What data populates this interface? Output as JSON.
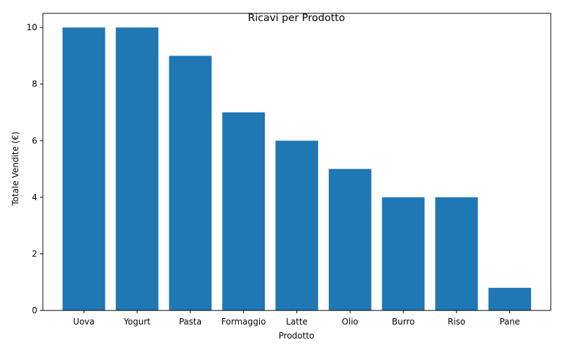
{
  "chart_data": {
    "type": "bar",
    "title": "Ricavi per Prodotto",
    "xlabel": "Prodotto",
    "ylabel": "Totale Vendite (€)",
    "categories": [
      "Uova",
      "Yogurt",
      "Pasta",
      "Formaggio",
      "Latte",
      "Olio",
      "Burro",
      "Riso",
      "Pane"
    ],
    "values": [
      10,
      10,
      9,
      7,
      6,
      5,
      4,
      4,
      0.8
    ],
    "ylim": [
      0,
      10.5
    ],
    "yticks": [
      0,
      2,
      4,
      6,
      8,
      10
    ],
    "grid": false,
    "legend": "none",
    "bar_color": "#1f77b4"
  }
}
